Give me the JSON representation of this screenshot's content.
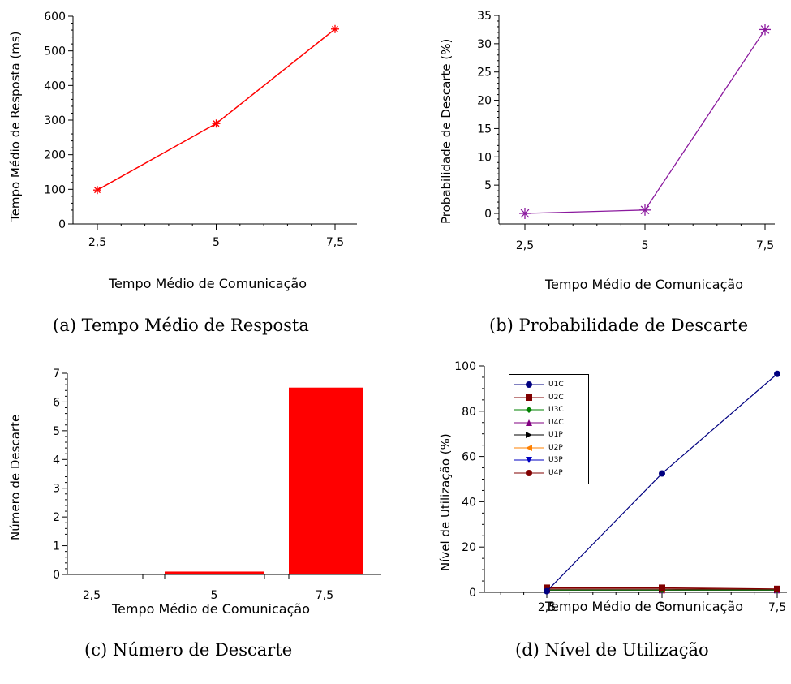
{
  "chart_data": [
    {
      "type": "line",
      "ylabel": "Tempo Médio de Resposta (ms)",
      "xlabel": "Tempo Médio de Comunicação",
      "caption": "(a)  Tempo Médio de Resposta",
      "categories": [
        "2,5",
        "5",
        "7,5"
      ],
      "x": [
        2.5,
        5,
        7.5
      ],
      "series": [
        {
          "values": [
            98,
            290,
            563
          ]
        }
      ],
      "ylim": [
        0,
        600
      ],
      "yticks": [
        "0",
        "100",
        "200",
        "300",
        "400",
        "500",
        "600"
      ],
      "color": "#ff0000",
      "marker": "asterisk"
    },
    {
      "type": "line",
      "ylabel": "Probabilidade de Descarte (%)",
      "xlabel": "Tempo Médio de Comunicação",
      "caption": "(b)  Probabilidade de Descarte",
      "categories": [
        "2,5",
        "5",
        "7,5"
      ],
      "x": [
        2.5,
        5,
        7.5
      ],
      "series": [
        {
          "values": [
            0,
            0.6,
            32.5
          ]
        }
      ],
      "ylim": [
        -2,
        35
      ],
      "yticks": [
        "0",
        "5",
        "10",
        "15",
        "20",
        "25",
        "30",
        "35"
      ],
      "color": "#8b1a9e",
      "marker": "asterisk"
    },
    {
      "type": "bar",
      "ylabel": "Número de Descarte",
      "xlabel": "Tempo Médio de Comunicação",
      "caption": "(c)  Número de Descarte",
      "categories": [
        "2,5",
        "5",
        "7,5"
      ],
      "values": [
        0,
        0.1,
        6.5
      ],
      "ylim": [
        0,
        7
      ],
      "yticks": [
        "0",
        "1",
        "2",
        "3",
        "4",
        "5",
        "6",
        "7"
      ],
      "color": "#ff0000"
    },
    {
      "type": "line",
      "ylabel": "Nível de Utilização (%)",
      "xlabel": "Tempo Médio de Comunicação",
      "caption": "(d)  Nível de Utilização",
      "categories": [
        "2,5",
        "5",
        "7,5"
      ],
      "x": [
        2.5,
        5,
        7.5
      ],
      "ylim": [
        0,
        100
      ],
      "yticks": [
        "0",
        "20",
        "40",
        "60",
        "80",
        "100"
      ],
      "legend_position": "top-left",
      "series": [
        {
          "name": "U1C",
          "values": [
            0.5,
            52.5,
            96.5
          ],
          "color": "#000080",
          "marker": "circle"
        },
        {
          "name": "U2C",
          "values": [
            2.0,
            2.0,
            1.5
          ],
          "color": "#800000",
          "marker": "square"
        },
        {
          "name": "U3C",
          "values": [
            1.0,
            1.0,
            1.0
          ],
          "color": "#008000",
          "marker": "diamond"
        },
        {
          "name": "U4C",
          "values": [
            1.0,
            1.0,
            1.0
          ],
          "color": "#800080",
          "marker": "triangle-up"
        },
        {
          "name": "U1P",
          "values": [
            1.0,
            1.0,
            1.0
          ],
          "color": "#000000",
          "marker": "triangle-right"
        },
        {
          "name": "U2P",
          "values": [
            1.0,
            1.0,
            1.0
          ],
          "color": "#ff8000",
          "marker": "triangle-left"
        },
        {
          "name": "U3P",
          "values": [
            1.0,
            1.0,
            1.0
          ],
          "color": "#0000c0",
          "marker": "triangle-down"
        },
        {
          "name": "U4P",
          "values": [
            1.5,
            1.5,
            1.2
          ],
          "color": "#800000",
          "marker": "circle"
        }
      ]
    }
  ]
}
